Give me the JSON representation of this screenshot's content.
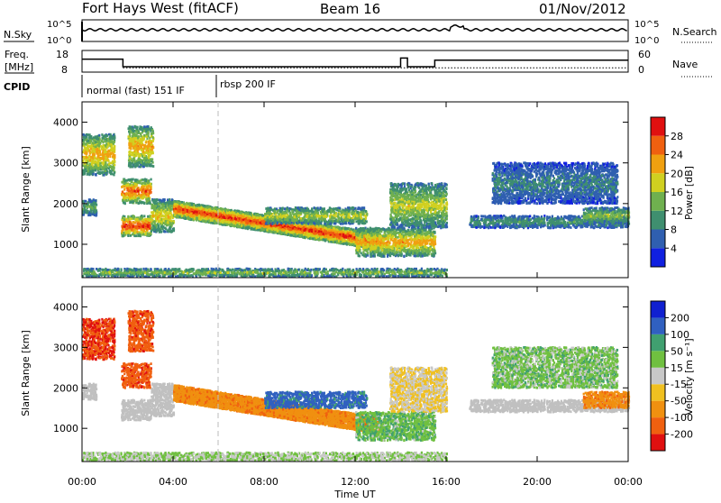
{
  "header": {
    "radar": "Fort Hays West (fitACF)",
    "beam": "Beam 16",
    "date": "01/Nov/2012"
  },
  "nsky_panel": {
    "left_label": "N.Sky",
    "right_label": "N.Search",
    "top_tick": "10^5",
    "bottom_tick": "10^0"
  },
  "freq_panel": {
    "left_label_1": "Freq.",
    "left_label_2": "[MHz]",
    "left_ticks": [
      "18",
      "8"
    ],
    "right_label": "Nave",
    "right_ticks": [
      "60",
      "0"
    ]
  },
  "cpid_panel": {
    "label": "CPID",
    "segments": [
      "normal (fast) 151 IF",
      "rbsp 200 IF"
    ]
  },
  "power_panel": {
    "ylabel": "Slant Range [km]",
    "yticks": [
      "1000",
      "2000",
      "3000",
      "4000"
    ],
    "colorbar_label": "Power [dB]",
    "colorbar_ticks": [
      "4",
      "8",
      "12",
      "16",
      "20",
      "24",
      "28"
    ]
  },
  "velocity_panel": {
    "ylabel": "Slant Range [km]",
    "yticks": [
      "1000",
      "2000",
      "3000",
      "4000"
    ],
    "colorbar_label": "Velocity [m s⁻¹]",
    "colorbar_ticks": [
      "-200",
      "-100",
      "-50",
      "-15",
      "15",
      "50",
      "100",
      "200"
    ]
  },
  "x_axis": {
    "label": "Time UT",
    "ticks": [
      "00:00",
      "04:00",
      "08:00",
      "12:00",
      "16:00",
      "20:00",
      "00:00"
    ]
  },
  "colors": {
    "power_scale": [
      "#1020e0",
      "#2f5fb0",
      "#3f8f6f",
      "#6fb04f",
      "#d0d020",
      "#f0a010",
      "#f06010",
      "#e01010"
    ],
    "velocity_scale": [
      "#e01010",
      "#f06010",
      "#f09010",
      "#f0c020",
      "#c8c8c8",
      "#70c040",
      "#40a070",
      "#3060c0",
      "#1020d0"
    ],
    "ground_scatter": "#c0c0c0"
  },
  "chart_data": {
    "type": "heatmap",
    "x_unit": "hours UT",
    "xlim": [
      0,
      24
    ],
    "ylim_km": [
      180,
      4500
    ],
    "mode_change_hour": 6.0,
    "frequency_mhz": {
      "t": [
        0,
        1.8,
        1.8,
        14.0,
        14.0,
        14.3,
        14.3,
        15.5,
        15.5,
        24
      ],
      "v": [
        14,
        14,
        10.5,
        10.5,
        14.5,
        14.5,
        10.5,
        10.5,
        13.5,
        13.5
      ]
    },
    "nave_dotted_value": 12,
    "regions": [
      {
        "name": "early-ionospheric-0h",
        "t": [
          0.0,
          0.6
        ],
        "r": [
          1700,
          2100
        ],
        "power": 10,
        "velocity": -15
      },
      {
        "name": "early-high-patches",
        "t": [
          0.0,
          1.4
        ],
        "r": [
          2700,
          3700
        ],
        "power": 18,
        "velocity": -200
      },
      {
        "name": "patch-2h",
        "t": [
          1.7,
          3.0
        ],
        "r": [
          2000,
          2600
        ],
        "power": 22,
        "velocity": -180
      },
      {
        "name": "patch-3h-high",
        "t": [
          2.0,
          3.1
        ],
        "r": [
          2900,
          3900
        ],
        "power": 18,
        "velocity": -180
      },
      {
        "name": "ground-scatter-2h",
        "t": [
          1.7,
          3.0
        ],
        "r": [
          1200,
          1700
        ],
        "power": 24,
        "velocity": -15
      },
      {
        "name": "rising-band-3-4h",
        "t": [
          3.0,
          4.0
        ],
        "r": [
          1300,
          2100
        ],
        "power": 16,
        "velocity": -15
      },
      {
        "name": "main-band-4-13h",
        "t": [
          4.0,
          13.0
        ],
        "r": [
          1000,
          2000
        ],
        "power": 24,
        "velocity": -80
      },
      {
        "name": "upper-band-8-12h",
        "t": [
          8.0,
          12.5
        ],
        "r": [
          1500,
          1900
        ],
        "power": 14,
        "velocity": 120
      },
      {
        "name": "ground-scatter-12-15h",
        "t": [
          12.0,
          15.5
        ],
        "r": [
          700,
          1400
        ],
        "power": 18,
        "velocity": 40
      },
      {
        "name": "scatter-14-16h",
        "t": [
          13.5,
          16.0
        ],
        "r": [
          1400,
          2500
        ],
        "power": 14,
        "velocity": -15
      },
      {
        "name": "late-band-17-24h",
        "t": [
          17.0,
          24.0
        ],
        "r": [
          1400,
          1700
        ],
        "power": 8,
        "velocity": -15
      },
      {
        "name": "late-patches-high",
        "t": [
          18.0,
          23.5
        ],
        "r": [
          2000,
          3000
        ],
        "power": 6,
        "velocity": 30
      },
      {
        "name": "late-ionospheric-22-24h",
        "t": [
          22.0,
          24.0
        ],
        "r": [
          1500,
          1900
        ],
        "power": 12,
        "velocity": -80
      },
      {
        "name": "near-range-clutter",
        "t": [
          0.0,
          16.0
        ],
        "r": [
          200,
          400
        ],
        "power": 12,
        "velocity": 15
      }
    ]
  }
}
